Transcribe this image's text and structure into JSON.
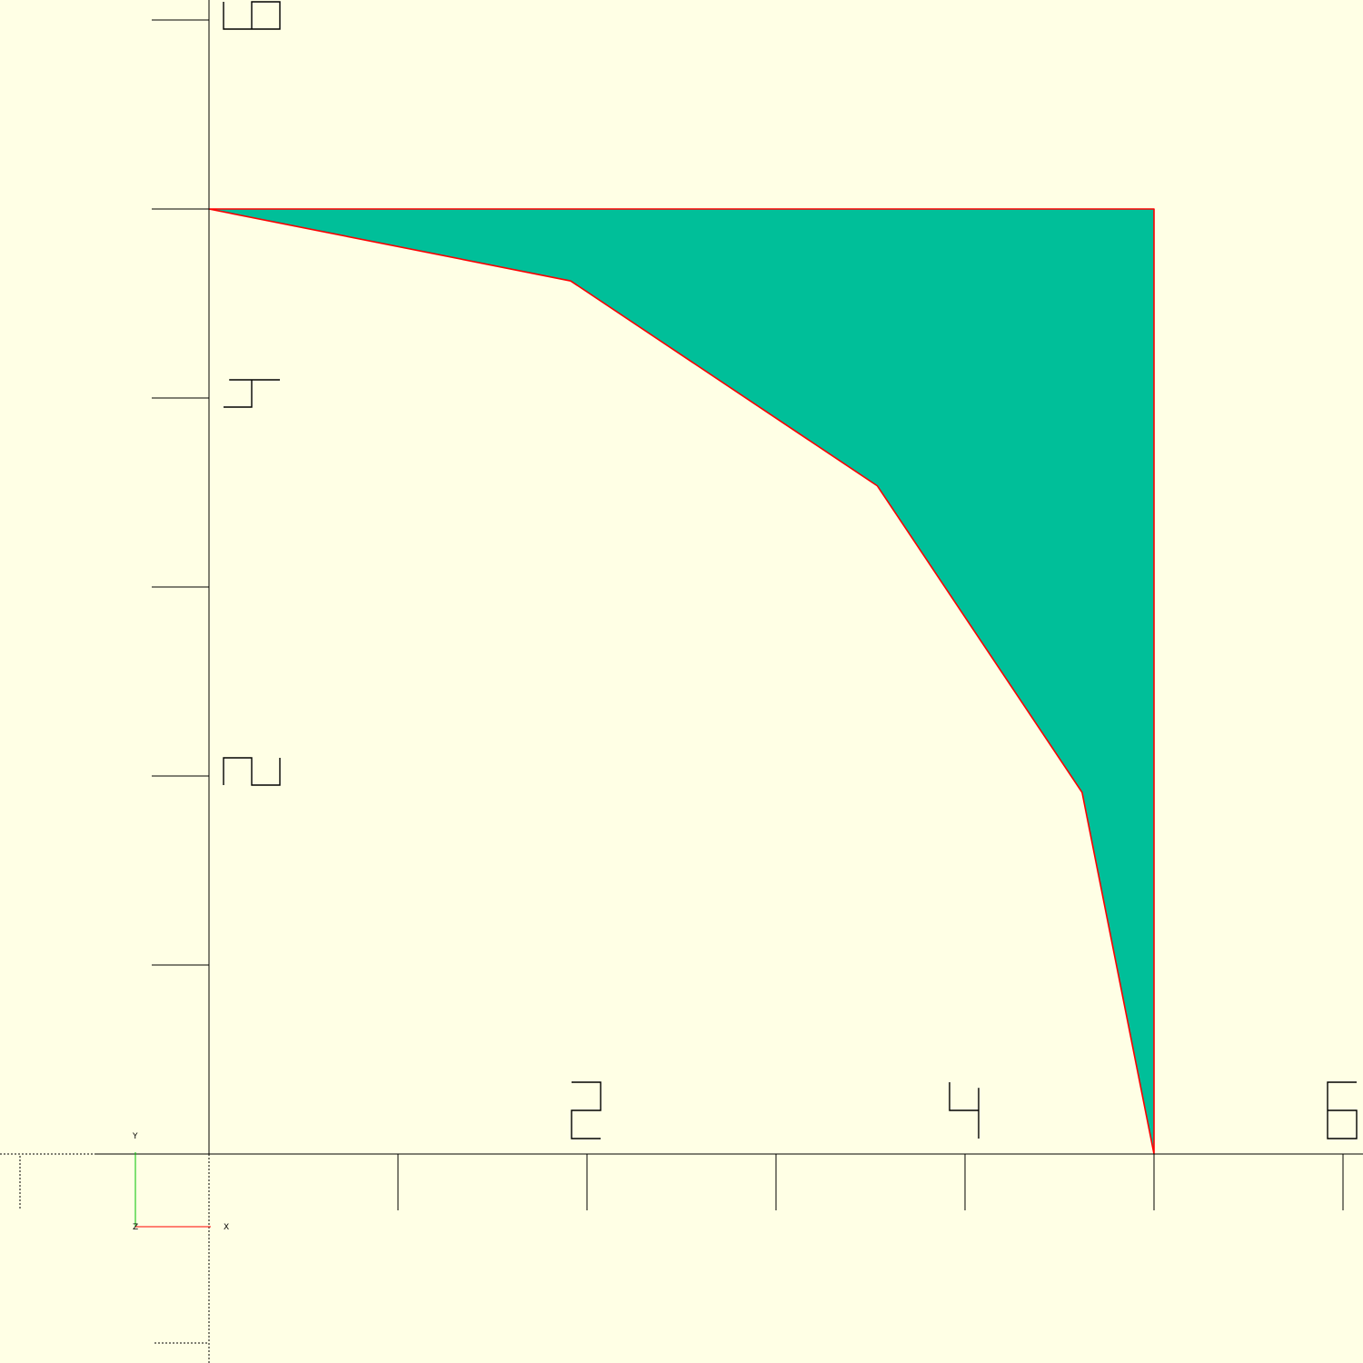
{
  "colors": {
    "background": "#ffffe5",
    "shape_fill": "#00bf99",
    "shape_edge": "#ff0000",
    "axis": "#000000",
    "gizmo_x": "#ff0000",
    "gizmo_y": "#00c000"
  },
  "scene": {
    "shape": "square minus quarter circle",
    "square_size": 5,
    "circle_radius": 5,
    "circle_segments": 16
  },
  "axes": {
    "x_labels": [
      "2",
      "4",
      "6"
    ],
    "y_labels": [
      "2",
      "4",
      "6"
    ]
  },
  "gizmo": {
    "x_label": "X",
    "y_label": "Y",
    "z_label": "Z"
  }
}
